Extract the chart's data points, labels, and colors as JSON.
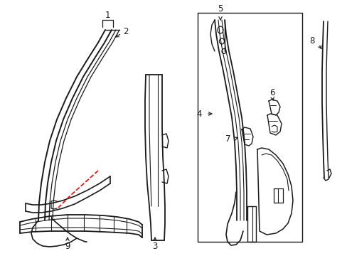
{
  "bg_color": "#ffffff",
  "line_color": "#1a1a1a",
  "red_color": "#ff0000",
  "figsize": [
    4.89,
    3.6
  ],
  "dpi": 100
}
